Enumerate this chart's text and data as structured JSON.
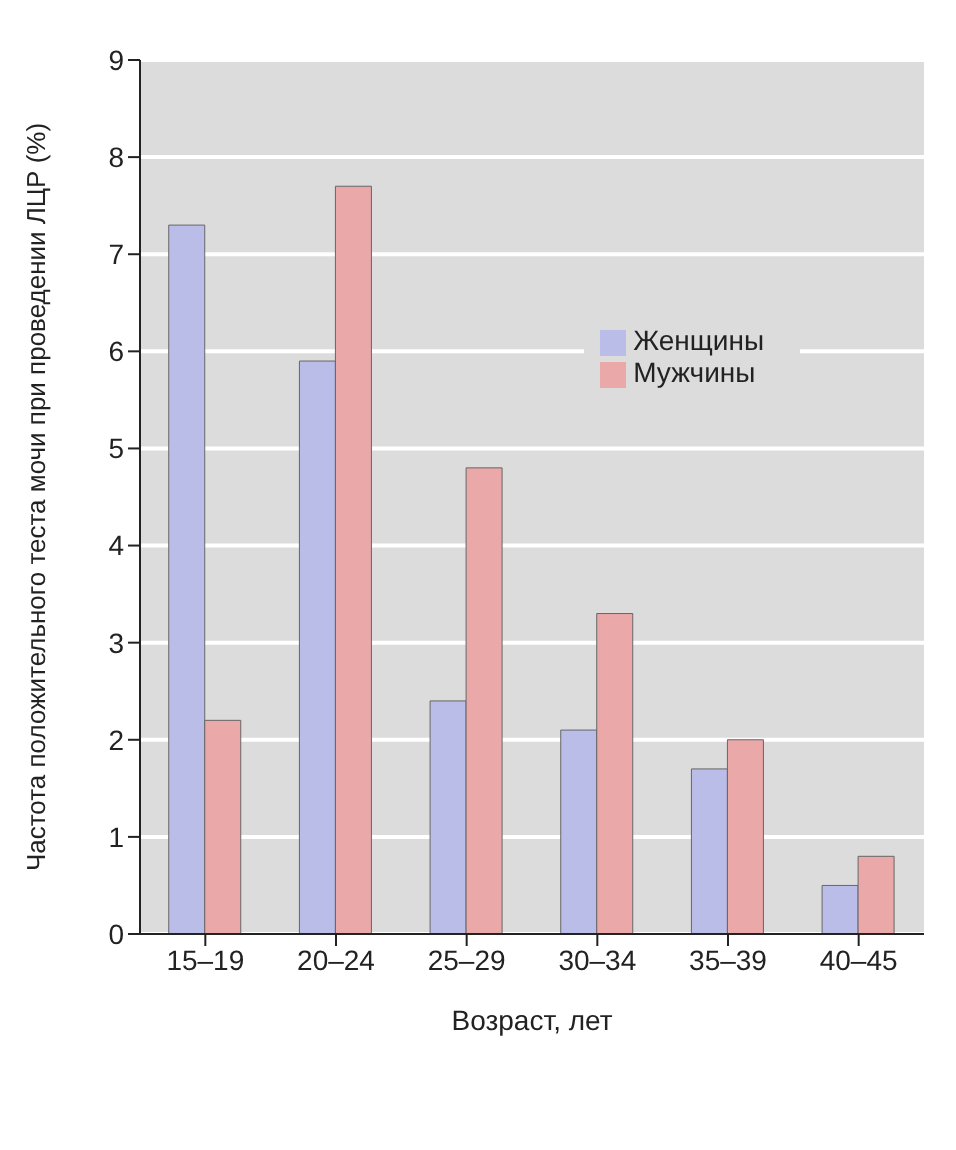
{
  "chart_data": {
    "type": "bar",
    "xlabel": "Возраст, лет",
    "ylabel": "Частота положительного теста мочи при проведении ЛЦР (%)",
    "categories": [
      "15–19",
      "20–24",
      "25–29",
      "30–34",
      "35–39",
      "40–45"
    ],
    "series": [
      {
        "name": "Женщины",
        "color": "#b9bde8",
        "values": [
          7.3,
          5.9,
          2.4,
          2.1,
          1.7,
          0.5
        ]
      },
      {
        "name": "Мужчины",
        "color": "#eba8a8",
        "values": [
          2.2,
          7.7,
          4.8,
          3.3,
          2.0,
          0.8
        ]
      }
    ],
    "ylim": [
      0,
      9
    ],
    "yticks": [
      0,
      1,
      2,
      3,
      4,
      5,
      6,
      7,
      8,
      9
    ],
    "grid": "y",
    "legend": "right"
  }
}
